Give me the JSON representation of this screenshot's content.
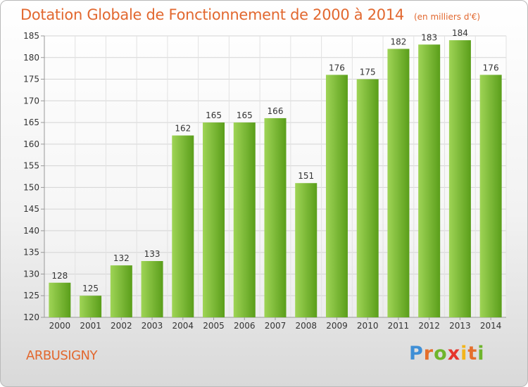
{
  "title": "Dotation Globale de Fonctionnement de 2000 à 2014",
  "subtitle": "(en milliers d'€)",
  "commune": "ARBUSIGNY",
  "logo": {
    "text": "Proxiti",
    "letters": [
      "P",
      "r",
      "o",
      "x",
      "i",
      "t",
      "i"
    ]
  },
  "colors": {
    "accent": "#e2682f",
    "bar_light": "#9fd456",
    "bar_dark": "#5a9e1a"
  },
  "chart_data": {
    "type": "bar",
    "categories": [
      "2000",
      "2001",
      "2002",
      "2003",
      "2004",
      "2005",
      "2006",
      "2007",
      "2008",
      "2009",
      "2010",
      "2011",
      "2012",
      "2013",
      "2014"
    ],
    "values": [
      128,
      125,
      132,
      133,
      162,
      165,
      165,
      166,
      151,
      176,
      175,
      182,
      183,
      184,
      176
    ],
    "title": "Dotation Globale de Fonctionnement de 2000 à 2014",
    "subtitle": "(en milliers d'€)",
    "ylim": [
      120,
      185
    ],
    "yticks": [
      120,
      125,
      130,
      135,
      140,
      145,
      150,
      155,
      160,
      165,
      170,
      175,
      180,
      185
    ],
    "grid": true,
    "legend": "none"
  }
}
